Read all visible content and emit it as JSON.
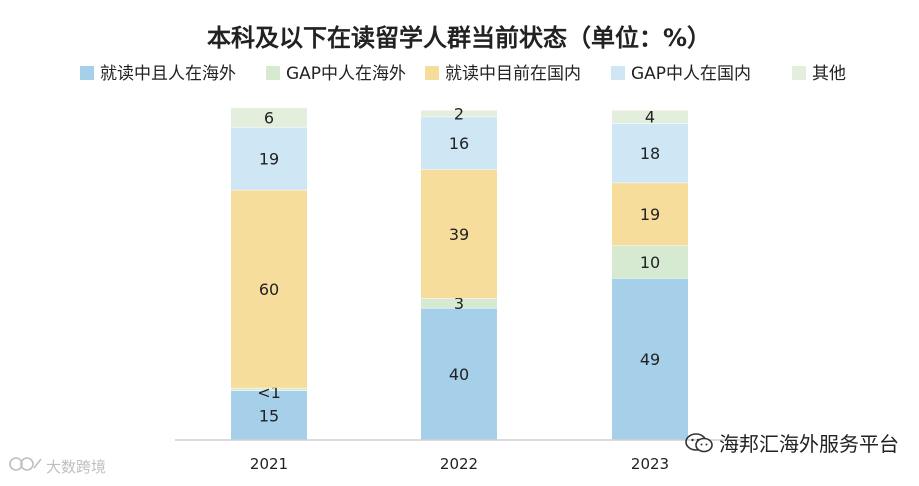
{
  "chart_data": {
    "type": "bar",
    "stacked": true,
    "title": "本科及以下在读留学人群当前状态（单位：%）",
    "categories": [
      "2021",
      "2022",
      "2023"
    ],
    "series": [
      {
        "name": "就读中且人在海外",
        "color": "#a6cfe9",
        "values": [
          15,
          40,
          49
        ],
        "labels": [
          "15",
          "40",
          "49"
        ]
      },
      {
        "name": "GAP中人在海外",
        "color": "#d6e9d1",
        "values": [
          0.8,
          3,
          10
        ],
        "labels": [
          "<1",
          "3",
          "10"
        ]
      },
      {
        "name": "就读中目前在国内",
        "color": "#f6dd9b",
        "values": [
          60,
          39,
          19
        ],
        "labels": [
          "60",
          "39",
          "19"
        ]
      },
      {
        "name": "GAP中人在国内",
        "color": "#cfe6f4",
        "values": [
          19,
          16,
          18
        ],
        "labels": [
          "19",
          "16",
          "18"
        ]
      },
      {
        "name": "其他",
        "color": "#e3efdc",
        "values": [
          6,
          2,
          4
        ],
        "labels": [
          "6",
          "2",
          "4"
        ]
      }
    ],
    "ylim": [
      0,
      100
    ],
    "xlabel": "",
    "ylabel": "",
    "grid": false,
    "legend": "top"
  },
  "watermarks": {
    "right": "海邦汇海外服务平台",
    "left": "大数跨境"
  }
}
